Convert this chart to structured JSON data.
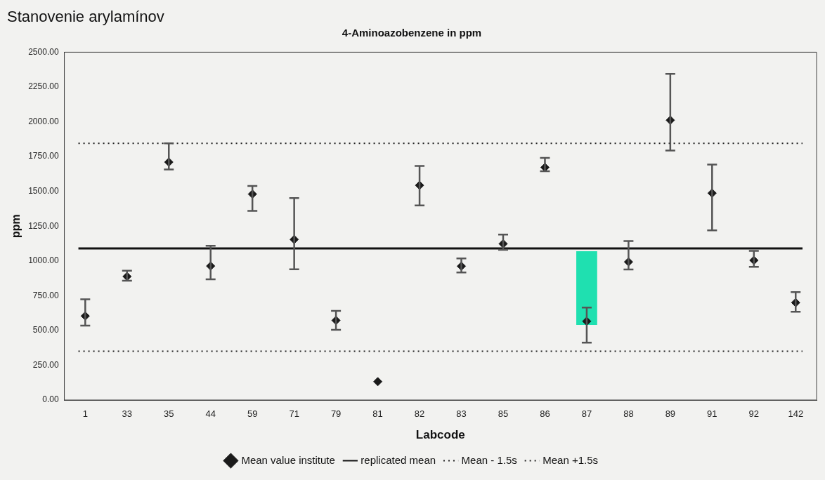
{
  "chart_data": {
    "type": "scatter",
    "title": "Stanovenie arylamínov",
    "subtitle": "4-Aminoazobenzene in ppm",
    "xlabel": "Labcode",
    "ylabel": "ppm",
    "categories": [
      "1",
      "33",
      "35",
      "44",
      "59",
      "71",
      "79",
      "81",
      "82",
      "83",
      "85",
      "86",
      "87",
      "88",
      "89",
      "91",
      "92",
      "142"
    ],
    "series": [
      {
        "name": "Mean value institute",
        "color": "#1a1a1a",
        "values": [
          604,
          888,
          1710,
          963,
          1480,
          1154,
          572,
          132,
          1543,
          962,
          1123,
          1672,
          566,
          993,
          2011,
          1487,
          1004,
          700
        ],
        "errors": [
          [
            535,
            724
          ],
          [
            857,
            929
          ],
          [
            1657,
            1845
          ],
          [
            868,
            1108
          ],
          [
            1360,
            1538
          ],
          [
            940,
            1451
          ],
          [
            504,
            641
          ],
          null,
          [
            1398,
            1682
          ],
          [
            917,
            1018
          ],
          [
            1080,
            1189
          ],
          [
            1645,
            1740
          ],
          [
            412,
            665
          ],
          [
            938,
            1142
          ],
          [
            1793,
            2344
          ],
          [
            1220,
            1693
          ],
          [
            957,
            1072
          ],
          [
            634,
            776
          ]
        ]
      },
      {
        "type": "bar",
        "color": "#1fe0b0",
        "values": [
          null,
          null,
          null,
          null,
          null,
          null,
          null,
          null,
          null,
          null,
          null,
          null,
          530,
          null,
          null,
          null,
          null,
          null
        ],
        "base": [
          null,
          null,
          null,
          null,
          null,
          null,
          null,
          null,
          null,
          null,
          null,
          null,
          540,
          null,
          null,
          null,
          null,
          null
        ]
      }
    ],
    "ref_lines": [
      {
        "axis": "y",
        "value": 1090,
        "label": "replicated mean",
        "color": "#111111",
        "line_style": "solid"
      },
      {
        "axis": "y",
        "value": 350,
        "label": "Mean - 1.5s",
        "color": "#222222",
        "line_style": "dotted"
      },
      {
        "axis": "y",
        "value": 1845,
        "label": "Mean +1.5s",
        "color": "#222222",
        "line_style": "dotted"
      }
    ],
    "ylim": [
      0,
      2500
    ],
    "yticks": [
      {
        "value": 0,
        "label": "0.00"
      },
      {
        "value": 250,
        "label": "250.00"
      },
      {
        "value": 500,
        "label": "500.00"
      },
      {
        "value": 750,
        "label": "750.00"
      },
      {
        "value": 1000,
        "label": "1000.00"
      },
      {
        "value": 1250,
        "label": "1250.00"
      },
      {
        "value": 1500,
        "label": "1500.00"
      },
      {
        "value": 1750,
        "label": "1750.00"
      },
      {
        "value": 2000,
        "label": "2000.00"
      },
      {
        "value": 2250,
        "label": "2250.00"
      },
      {
        "value": 2500,
        "label": "2500.00"
      }
    ],
    "grid": false,
    "legend": "bottom",
    "marker": "diamond"
  }
}
